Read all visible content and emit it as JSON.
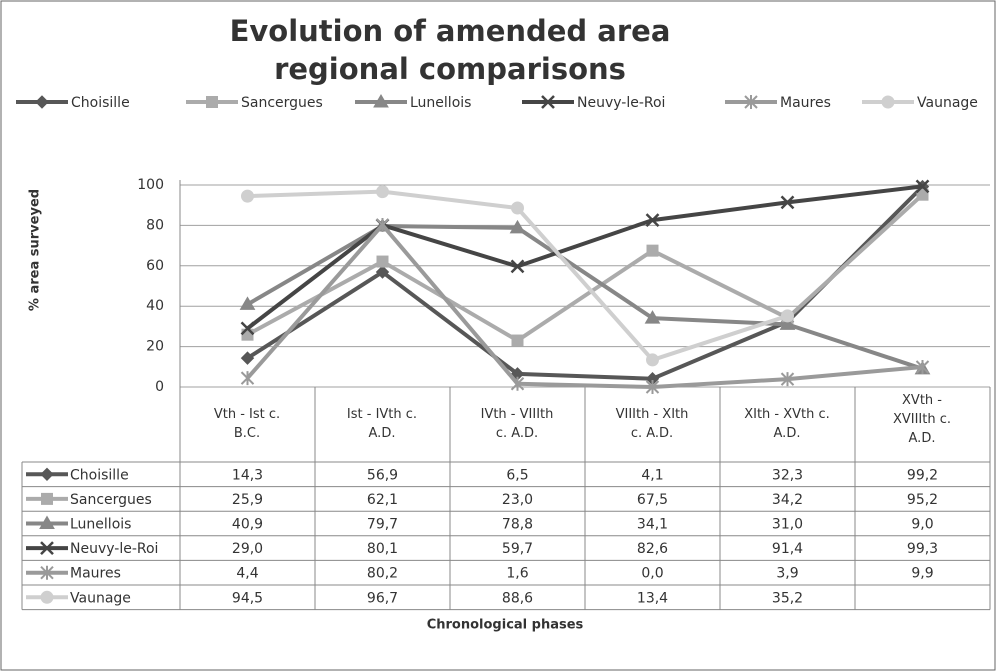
{
  "chart_data": {
    "type": "line",
    "title": "Evolution of amended area\nregional comparisons",
    "ylabel": "% area surveyed",
    "xlabel": "Chronological phases",
    "categories": [
      "Vth - Ist c.\nB.C.",
      "Ist - IVth c.\nA.D.",
      "IVth - VIIIth\nc. A.D.",
      "VIIIth - XIth\nc. A.D.",
      "XIth - XVth c.\nA.D.",
      "XVth -\nXVIIIth c.\nA.D."
    ],
    "ylim": [
      0,
      100
    ],
    "yticks": [
      0,
      20,
      40,
      60,
      80,
      100
    ],
    "grid": true,
    "legend": "top",
    "series": [
      {
        "name": "Choisille",
        "color": "#575757",
        "marker": "diamond",
        "values": [
          14.3,
          56.9,
          6.5,
          4.1,
          32.3,
          99.2
        ],
        "value_labels": [
          "14,3",
          "56,9",
          "6,5",
          "4,1",
          "32,3",
          "99,2"
        ]
      },
      {
        "name": "Sancergues",
        "color": "#ababab",
        "marker": "square",
        "values": [
          25.9,
          62.1,
          23.0,
          67.5,
          34.2,
          95.2
        ],
        "value_labels": [
          "25,9",
          "62,1",
          "23,0",
          "67,5",
          "34,2",
          "95,2"
        ]
      },
      {
        "name": "Lunellois",
        "color": "#878787",
        "marker": "triangle",
        "values": [
          40.9,
          79.7,
          78.8,
          34.1,
          31.0,
          9.0
        ],
        "value_labels": [
          "40,9",
          "79,7",
          "78,8",
          "34,1",
          "31,0",
          "9,0"
        ]
      },
      {
        "name": "Neuvy-le-Roi",
        "color": "#454545",
        "marker": "x",
        "values": [
          29.0,
          80.1,
          59.7,
          82.6,
          91.4,
          99.3
        ],
        "value_labels": [
          "29,0",
          "80,1",
          "59,7",
          "82,6",
          "91,4",
          "99,3"
        ]
      },
      {
        "name": "Maures",
        "color": "#9a9a9a",
        "marker": "star",
        "values": [
          4.4,
          80.2,
          1.6,
          0.0,
          3.9,
          9.9
        ],
        "value_labels": [
          "4,4",
          "80,2",
          "1,6",
          "0,0",
          "3,9",
          "9,9"
        ]
      },
      {
        "name": "Vaunage",
        "color": "#cfcfcf",
        "marker": "circle",
        "values": [
          94.5,
          96.7,
          88.6,
          13.4,
          35.2,
          null
        ],
        "value_labels": [
          "94,5",
          "96,7",
          "88,6",
          "13,4",
          "35,2",
          null
        ]
      }
    ]
  }
}
